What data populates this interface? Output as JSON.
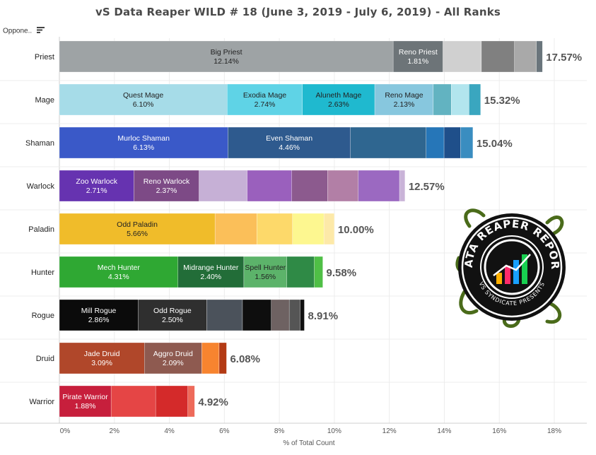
{
  "title": "vS Data Reaper WILD # 18 (June 3, 2019 - July 6, 2019) - All Ranks",
  "column_header": "Oppone..",
  "logo_text": {
    "top": "DATA REAPER REPORT",
    "bottom": "VS SYNDICATE PRESENTS"
  },
  "chart_data": {
    "type": "bar",
    "orientation": "horizontal",
    "stacked": true,
    "title": "vS Data Reaper WILD # 18 (June 3, 2019 - July 6, 2019) - All Ranks",
    "xlabel": "% of Total Count",
    "ylabel": "",
    "xlim": [
      0,
      18
    ],
    "xticks": [
      "0%",
      "2%",
      "4%",
      "6%",
      "8%",
      "10%",
      "12%",
      "14%",
      "16%",
      "18%"
    ],
    "grid": true,
    "categories": [
      "Priest",
      "Mage",
      "Shaman",
      "Warlock",
      "Paladin",
      "Hunter",
      "Rogue",
      "Druid",
      "Warrior"
    ],
    "totals": [
      "17.57%",
      "15.32%",
      "15.04%",
      "12.57%",
      "10.00%",
      "9.58%",
      "8.91%",
      "6.08%",
      "4.92%"
    ],
    "bars": [
      {
        "class": "Priest",
        "total": 17.57,
        "segments": [
          {
            "name": "Big Priest",
            "value": 12.14,
            "label": "12.14%",
            "color": "#9ea3a5"
          },
          {
            "name": "Reno Priest",
            "value": 1.81,
            "label": "1.81%",
            "color": "#6d7478"
          },
          {
            "name": "",
            "value": 1.4,
            "label": "",
            "color": "#d0d0d0"
          },
          {
            "name": "",
            "value": 1.2,
            "label": "",
            "color": "#808080"
          },
          {
            "name": "",
            "value": 0.8,
            "label": "",
            "color": "#a9a9a9"
          },
          {
            "name": "",
            "value": 0.22,
            "label": "",
            "color": "#6a757c"
          }
        ]
      },
      {
        "class": "Mage",
        "total": 15.32,
        "segments": [
          {
            "name": "Quest Mage",
            "value": 6.1,
            "label": "6.10%",
            "color": "#a6dce8"
          },
          {
            "name": "Exodia Mage",
            "value": 2.74,
            "label": "2.74%",
            "color": "#5fd3e6"
          },
          {
            "name": "Aluneth Mage",
            "value": 2.63,
            "label": "2.63%",
            "color": "#1fb9cf"
          },
          {
            "name": "Reno Mage",
            "value": 2.13,
            "label": "2.13%",
            "color": "#87c7de"
          },
          {
            "name": "",
            "value": 0.65,
            "label": "",
            "color": "#62b3c1"
          },
          {
            "name": "",
            "value": 0.65,
            "label": "",
            "color": "#b2e5ee"
          },
          {
            "name": "",
            "value": 0.42,
            "label": "",
            "color": "#3aa6bf"
          }
        ]
      },
      {
        "class": "Shaman",
        "total": 15.04,
        "segments": [
          {
            "name": "Murloc Shaman",
            "value": 6.13,
            "label": "6.13%",
            "color": "#3a59c8"
          },
          {
            "name": "Even Shaman",
            "value": 4.46,
            "label": "4.46%",
            "color": "#2e5a8e"
          },
          {
            "name": "",
            "value": 2.75,
            "label": "",
            "color": "#2f6690"
          },
          {
            "name": "",
            "value": 0.65,
            "label": "",
            "color": "#2676b8"
          },
          {
            "name": "",
            "value": 0.6,
            "label": "",
            "color": "#1f4f8a"
          },
          {
            "name": "",
            "value": 0.45,
            "label": "",
            "color": "#3a8dc0"
          }
        ]
      },
      {
        "class": "Warlock",
        "total": 12.57,
        "segments": [
          {
            "name": "Zoo Warlock",
            "value": 2.71,
            "label": "2.71%",
            "color": "#6633b0"
          },
          {
            "name": "Reno Warlock",
            "value": 2.37,
            "label": "2.37%",
            "color": "#7d4a86"
          },
          {
            "name": "",
            "value": 1.75,
            "label": "",
            "color": "#c6b0d6"
          },
          {
            "name": "",
            "value": 1.62,
            "label": "",
            "color": "#9a60bd"
          },
          {
            "name": "",
            "value": 1.3,
            "label": "",
            "color": "#8c5a8e"
          },
          {
            "name": "",
            "value": 1.12,
            "label": "",
            "color": "#b27fa6"
          },
          {
            "name": "",
            "value": 1.5,
            "label": "",
            "color": "#9b69c1"
          },
          {
            "name": "",
            "value": 0.2,
            "label": "",
            "color": "#c9b3d8"
          }
        ]
      },
      {
        "class": "Paladin",
        "total": 10.0,
        "segments": [
          {
            "name": "Odd Paladin",
            "value": 5.66,
            "label": "5.66%",
            "color": "#f0bc2a"
          },
          {
            "name": "",
            "value": 1.52,
            "label": "",
            "color": "#fbbf59"
          },
          {
            "name": "",
            "value": 1.3,
            "label": "",
            "color": "#fdd96a"
          },
          {
            "name": "",
            "value": 1.14,
            "label": "",
            "color": "#fdf790"
          },
          {
            "name": "",
            "value": 0.38,
            "label": "",
            "color": "#fde9a8"
          }
        ]
      },
      {
        "class": "Hunter",
        "total": 9.58,
        "segments": [
          {
            "name": "Mech Hunter",
            "value": 4.31,
            "label": "4.31%",
            "color": "#2fa833"
          },
          {
            "name": "Midrange Hunter",
            "value": 2.4,
            "label": "2.40%",
            "color": "#226d38"
          },
          {
            "name": "Spell Hunter",
            "value": 1.56,
            "label": "1.56%",
            "color": "#5cb36a"
          },
          {
            "name": "",
            "value": 1.0,
            "label": "",
            "color": "#2f8a46"
          },
          {
            "name": "",
            "value": 0.31,
            "label": "",
            "color": "#4fbf46"
          }
        ]
      },
      {
        "class": "Rogue",
        "total": 8.91,
        "segments": [
          {
            "name": "Mill Rogue",
            "value": 2.86,
            "label": "2.86%",
            "color": "#0b0b0b"
          },
          {
            "name": "Odd Rogue",
            "value": 2.5,
            "label": "2.50%",
            "color": "#2f2f2f"
          },
          {
            "name": "",
            "value": 1.3,
            "label": "",
            "color": "#4b525b"
          },
          {
            "name": "",
            "value": 1.05,
            "label": "",
            "color": "#0e0e0e"
          },
          {
            "name": "",
            "value": 0.65,
            "label": "",
            "color": "#6e6262"
          },
          {
            "name": "",
            "value": 0.4,
            "label": "",
            "color": "#555555"
          },
          {
            "name": "",
            "value": 0.15,
            "label": "",
            "color": "#111111"
          }
        ]
      },
      {
        "class": "Druid",
        "total": 6.08,
        "segments": [
          {
            "name": "Jade Druid",
            "value": 3.09,
            "label": "3.09%",
            "color": "#b0472a"
          },
          {
            "name": "Aggro Druid",
            "value": 2.09,
            "label": "2.09%",
            "color": "#8e5a50"
          },
          {
            "name": "",
            "value": 0.63,
            "label": "",
            "color": "#f7842f"
          },
          {
            "name": "",
            "value": 0.27,
            "label": "",
            "color": "#b33a14"
          }
        ]
      },
      {
        "class": "Warrior",
        "total": 4.92,
        "segments": [
          {
            "name": "Pirate Warrior",
            "value": 1.88,
            "label": "1.88%",
            "color": "#c71f3c"
          },
          {
            "name": "",
            "value": 1.62,
            "label": "",
            "color": "#e54545"
          },
          {
            "name": "",
            "value": 1.17,
            "label": "",
            "color": "#d42a2a"
          },
          {
            "name": "",
            "value": 0.25,
            "label": "",
            "color": "#ee6a5a"
          }
        ]
      }
    ]
  }
}
